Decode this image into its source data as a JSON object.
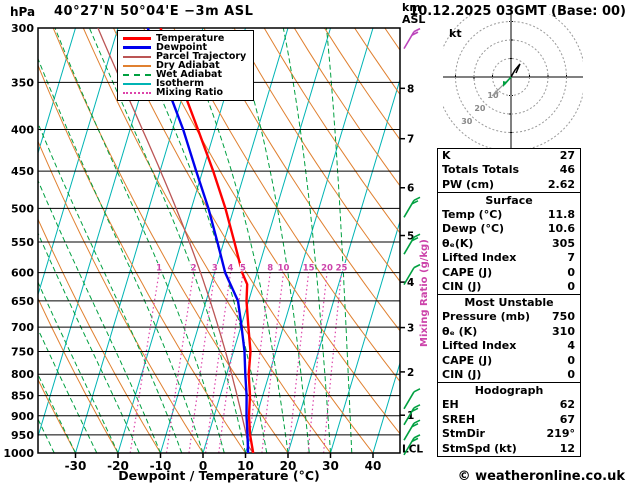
{
  "header": {
    "left_unit": "hPa",
    "title": "40°27'N 50°04'E −3m ASL",
    "right_unit_line1": "km",
    "right_unit_line2": "ASL",
    "date": "10.12.2025 03GMT (Base: 00)"
  },
  "chart_data": {
    "type": "line",
    "subtype": "skew-t-log-p-sounding",
    "xlabel": "Dewpoint / Temperature (°C)",
    "x_ticks": [
      -30,
      -20,
      -10,
      0,
      10,
      20,
      30,
      40
    ],
    "x_range": [
      -40,
      46
    ],
    "pressure_levels": [
      300,
      350,
      400,
      450,
      500,
      550,
      600,
      650,
      700,
      750,
      800,
      850,
      900,
      950,
      1000
    ],
    "pressure_range": [
      300,
      1000
    ],
    "km_ticks": [
      1,
      2,
      3,
      4,
      5,
      6,
      7,
      8
    ],
    "lcl_label": "LCL",
    "mixing_ratio_axis_label": "Mixing Ratio (g/kg)",
    "mixing_ratio_values": [
      1,
      2,
      3,
      4,
      5,
      8,
      10,
      15,
      20,
      25
    ],
    "isotherm_step": 10,
    "colors": {
      "temperature": "#ff0000",
      "dewpoint": "#0000ee",
      "parcel": "#bb5555",
      "dry_adiabat": "#e08030",
      "wet_adiabat": "#00a040",
      "isotherm": "#00b4b4",
      "mixing_ratio": "#dd44aa",
      "pressure_line": "#000000"
    },
    "parcel": {
      "surface_temp": 11.8,
      "surface_dewp": 10.6
    },
    "series": [
      {
        "name": "Temperature",
        "color": "#ff0000",
        "width": 2.4,
        "points": [
          [
            1000,
            11.8
          ],
          [
            950,
            9.8
          ],
          [
            900,
            8.2
          ],
          [
            850,
            7.0
          ],
          [
            800,
            5.2
          ],
          [
            750,
            4.0
          ],
          [
            700,
            1.8
          ],
          [
            650,
            -0.5
          ],
          [
            620,
            -1.5
          ],
          [
            600,
            -3.5
          ],
          [
            550,
            -7.5
          ],
          [
            500,
            -12
          ],
          [
            450,
            -17.5
          ],
          [
            400,
            -24
          ],
          [
            350,
            -31.5
          ],
          [
            300,
            -40
          ]
        ]
      },
      {
        "name": "Dewpoint",
        "color": "#0000ee",
        "width": 2.4,
        "points": [
          [
            1000,
            10.6
          ],
          [
            950,
            9.2
          ],
          [
            900,
            7.6
          ],
          [
            850,
            6.2
          ],
          [
            800,
            4.4
          ],
          [
            750,
            2.6
          ],
          [
            700,
            0.2
          ],
          [
            650,
            -2.5
          ],
          [
            600,
            -7.5
          ],
          [
            550,
            -11.5
          ],
          [
            500,
            -16
          ],
          [
            450,
            -21.5
          ],
          [
            400,
            -27.5
          ],
          [
            350,
            -35
          ],
          [
            300,
            -43
          ]
        ]
      },
      {
        "name": "Parcel Trajectory",
        "color": "#bb5555",
        "width": 1.3,
        "computed_from_surface": true,
        "points": []
      }
    ],
    "legend": [
      {
        "label": "Temperature",
        "color": "#ff0000",
        "style": "solid",
        "width": 3
      },
      {
        "label": "Dewpoint",
        "color": "#0000ee",
        "style": "solid",
        "width": 3
      },
      {
        "label": "Parcel Trajectory",
        "color": "#bb5555",
        "style": "solid",
        "width": 2
      },
      {
        "label": "Dry Adiabat",
        "color": "#e08030",
        "style": "solid",
        "width": 2
      },
      {
        "label": "Wet Adiabat",
        "color": "#00a040",
        "style": "dashed",
        "width": 2
      },
      {
        "label": "Isotherm",
        "color": "#00b4b4",
        "style": "solid",
        "width": 2
      },
      {
        "label": "Mixing Ratio",
        "color": "#dd44aa",
        "style": "dotted",
        "width": 2
      }
    ],
    "wind_barbs": [
      {
        "pressure": 310,
        "speed": 15,
        "color": "#bb44bb"
      },
      {
        "pressure": 500,
        "speed": 10,
        "color": "#00a040"
      },
      {
        "pressure": 555,
        "speed": 10,
        "color": "#00a040"
      },
      {
        "pressure": 605,
        "speed": 5,
        "color": "#00a040"
      },
      {
        "pressure": 860,
        "speed": 5,
        "color": "#00a040"
      },
      {
        "pressure": 900,
        "speed": 10,
        "color": "#00a040"
      },
      {
        "pressure": 940,
        "speed": 10,
        "color": "#00a040"
      },
      {
        "pressure": 980,
        "speed": 15,
        "color": "#00a040"
      }
    ]
  },
  "hodograph": {
    "unit": "kt",
    "rings": [
      10,
      20,
      30
    ]
  },
  "table": {
    "sections": [
      {
        "header": null,
        "rows": [
          [
            "K",
            "27"
          ],
          [
            "Totals Totals",
            "46"
          ],
          [
            "PW (cm)",
            "2.62"
          ]
        ]
      },
      {
        "header": "Surface",
        "rows": [
          [
            "Temp (°C)",
            "11.8"
          ],
          [
            "Dewp (°C)",
            "10.6"
          ],
          [
            "θₑ(K)",
            "305"
          ],
          [
            "Lifted Index",
            "7"
          ],
          [
            "CAPE (J)",
            "0"
          ],
          [
            "CIN (J)",
            "0"
          ]
        ]
      },
      {
        "header": "Most Unstable",
        "rows": [
          [
            "Pressure (mb)",
            "750"
          ],
          [
            "θₑ (K)",
            "310"
          ],
          [
            "Lifted Index",
            "4"
          ],
          [
            "CAPE (J)",
            "0"
          ],
          [
            "CIN (J)",
            "0"
          ]
        ]
      },
      {
        "header": "Hodograph",
        "rows": [
          [
            "EH",
            "62"
          ],
          [
            "SREH",
            "67"
          ],
          [
            "StmDir",
            "219°"
          ],
          [
            "StmSpd (kt)",
            "12"
          ]
        ]
      }
    ]
  },
  "footer": {
    "copyright": "© weatheronline.co.uk"
  }
}
